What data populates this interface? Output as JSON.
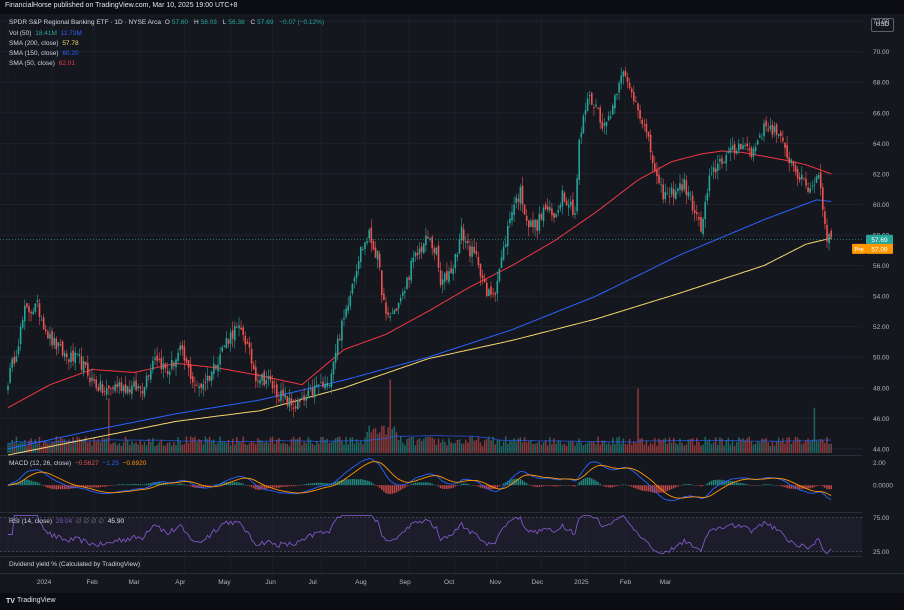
{
  "header": {
    "publisher": "FinancialHorse published on TradingView.com, Mar 10, 2025 19:00 UTC+8",
    "currency": "USD"
  },
  "legend": {
    "title": "SPDR S&P Regional Banking ETF · 1D · NYSE Arca",
    "ohlc": [
      {
        "label": "O",
        "value": "57.60"
      },
      {
        "label": "H",
        "value": "58.03"
      },
      {
        "label": "L",
        "value": "56.38"
      },
      {
        "label": "C",
        "value": "57.69"
      }
    ],
    "change": "−0.07 (−0.12%)",
    "vol": {
      "label": "Vol (50)",
      "v1": "18.41M",
      "v2": "11.73M"
    },
    "sma200": {
      "label": "SMA (200, close)",
      "value": "57.78"
    },
    "sma150": {
      "label": "SMA (150, close)",
      "value": "60.20"
    },
    "sma50": {
      "label": "SMA (50, close)",
      "value": "62.01"
    },
    "macd": {
      "label": "MACD (12, 26, close)",
      "v1": "−0.5627",
      "v2": "−1.25",
      "v3": "−0.6920"
    },
    "rsi": {
      "label": "RSI (14, close)",
      "v1": "29.04",
      "v2": "∅ ∅ ∅ ∅",
      "v3": "45.90"
    },
    "dividend": "Dividend yield % (Calculated by TradingView)"
  },
  "price_tags": {
    "last": "57.69",
    "pre_label": "Pre",
    "pre": "57.09"
  },
  "colors": {
    "up": "#26a69a",
    "down": "#ef5350",
    "sma50": "#f23645",
    "sma150": "#2962ff",
    "sma200": "#f5d76e",
    "macd": "#2962ff",
    "signal": "#ff9800",
    "rsi": "#7e57c2",
    "bg": "#15171f",
    "grid": "#1e222d"
  },
  "footer": {
    "brand_icon": "TV",
    "brand": "TradingView"
  },
  "chart_data": {
    "type": "candlestick",
    "price_axis": {
      "ticks": [
        "44.00",
        "46.00",
        "48.00",
        "50.00",
        "52.00",
        "54.00",
        "56.00",
        "58.00",
        "60.00",
        "62.00",
        "64.00",
        "66.00",
        "68.00",
        "70.00",
        "72.00"
      ],
      "range": [
        43.6,
        72.4
      ]
    },
    "time_axis": {
      "labels": [
        "2024",
        "Feb",
        "Mar",
        "Apr",
        "May",
        "Jun",
        "Jul",
        "Aug",
        "Sep",
        "Oct",
        "Nov",
        "Dec",
        "2025",
        "Feb",
        "Mar"
      ]
    },
    "price_path": [
      [
        0,
        48.5
      ],
      [
        4,
        50.5
      ],
      [
        8,
        53.0
      ],
      [
        14,
        53.3
      ],
      [
        20,
        51.2
      ],
      [
        28,
        50.0
      ],
      [
        34,
        49.8
      ],
      [
        40,
        48.5
      ],
      [
        46,
        47.7
      ],
      [
        52,
        48.2
      ],
      [
        58,
        48.0
      ],
      [
        64,
        48.0
      ],
      [
        70,
        50.2
      ],
      [
        76,
        49.0
      ],
      [
        82,
        50.4
      ],
      [
        90,
        47.9
      ],
      [
        96,
        48.8
      ],
      [
        104,
        51.1
      ],
      [
        108,
        51.8
      ],
      [
        112,
        51.6
      ],
      [
        118,
        48.8
      ],
      [
        124,
        48.5
      ],
      [
        128,
        47.7
      ],
      [
        132,
        47.2
      ],
      [
        136,
        46.8
      ],
      [
        140,
        47.0
      ],
      [
        144,
        47.6
      ],
      [
        148,
        48.2
      ],
      [
        152,
        48.0
      ],
      [
        156,
        50.5
      ],
      [
        160,
        52.5
      ],
      [
        164,
        55.0
      ],
      [
        168,
        57.0
      ],
      [
        172,
        58.0
      ],
      [
        176,
        56.5
      ],
      [
        180,
        52.5
      ],
      [
        184,
        53.0
      ],
      [
        188,
        54.0
      ],
      [
        192,
        56.0
      ],
      [
        196,
        57.0
      ],
      [
        200,
        57.8
      ],
      [
        204,
        56.8
      ],
      [
        206,
        54.7
      ],
      [
        212,
        56.0
      ],
      [
        216,
        58.2
      ],
      [
        220,
        57.0
      ],
      [
        224,
        56.3
      ],
      [
        228,
        54.0
      ],
      [
        232,
        54.5
      ],
      [
        236,
        57.0
      ],
      [
        240,
        59.8
      ],
      [
        244,
        60.8
      ],
      [
        248,
        58.6
      ],
      [
        252,
        58.7
      ],
      [
        256,
        59.8
      ],
      [
        260,
        59.0
      ],
      [
        264,
        60.8
      ],
      [
        268,
        60.0
      ],
      [
        270,
        59.5
      ],
      [
        272,
        64.0
      ],
      [
        276,
        67.0
      ],
      [
        280,
        66.5
      ],
      [
        284,
        65.0
      ],
      [
        288,
        66.5
      ],
      [
        292,
        68.8
      ],
      [
        296,
        67.5
      ],
      [
        300,
        66.5
      ],
      [
        306,
        63.5
      ],
      [
        310,
        61.0
      ],
      [
        314,
        60.5
      ],
      [
        318,
        61.0
      ],
      [
        322,
        61.3
      ],
      [
        326,
        60.0
      ],
      [
        330,
        58.3
      ],
      [
        334,
        61.5
      ],
      [
        338,
        62.7
      ],
      [
        342,
        63.2
      ],
      [
        346,
        63.5
      ],
      [
        350,
        64.2
      ],
      [
        354,
        63.2
      ],
      [
        358,
        64.6
      ],
      [
        362,
        65.2
      ],
      [
        366,
        64.7
      ],
      [
        370,
        63.5
      ],
      [
        374,
        62.6
      ],
      [
        378,
        61.5
      ],
      [
        382,
        61.0
      ],
      [
        386,
        62.1
      ],
      [
        388,
        59.9
      ],
      [
        390,
        58.0
      ],
      [
        392,
        57.7
      ]
    ],
    "sma50": [
      [
        0,
        46.7
      ],
      [
        20,
        48.2
      ],
      [
        40,
        49.2
      ],
      [
        60,
        49.0
      ],
      [
        80,
        49.6
      ],
      [
        100,
        49.3
      ],
      [
        120,
        48.8
      ],
      [
        140,
        48.2
      ],
      [
        160,
        50.5
      ],
      [
        180,
        51.5
      ],
      [
        200,
        53.0
      ],
      [
        220,
        54.6
      ],
      [
        240,
        56.0
      ],
      [
        260,
        57.6
      ],
      [
        280,
        59.5
      ],
      [
        300,
        61.6
      ],
      [
        316,
        62.8
      ],
      [
        330,
        63.3
      ],
      [
        340,
        63.5
      ],
      [
        350,
        63.4
      ],
      [
        370,
        62.9
      ],
      [
        380,
        62.6
      ],
      [
        392,
        62.0
      ]
    ],
    "sma150": [
      [
        0,
        44.0
      ],
      [
        40,
        45.2
      ],
      [
        80,
        46.3
      ],
      [
        120,
        47.2
      ],
      [
        160,
        48.5
      ],
      [
        200,
        50.0
      ],
      [
        240,
        51.8
      ],
      [
        280,
        54.0
      ],
      [
        320,
        56.7
      ],
      [
        360,
        59.0
      ],
      [
        385,
        60.3
      ],
      [
        392,
        60.2
      ]
    ],
    "sma200": [
      [
        0,
        43.6
      ],
      [
        40,
        44.7
      ],
      [
        80,
        45.8
      ],
      [
        120,
        46.5
      ],
      [
        160,
        48.0
      ],
      [
        200,
        49.9
      ],
      [
        240,
        51.1
      ],
      [
        280,
        52.5
      ],
      [
        320,
        54.2
      ],
      [
        360,
        56.0
      ],
      [
        380,
        57.4
      ],
      [
        392,
        57.8
      ]
    ],
    "volume": {
      "axis_max_fraction": 1.0,
      "spike_indices": [
        48,
        182,
        300,
        384
      ],
      "recent_high": "18.41M",
      "avg": "11.73M"
    },
    "macd": {
      "axis_ticks": [
        "2.00",
        "0.0000"
      ],
      "range": [
        -2.2,
        2.5
      ]
    },
    "rsi": {
      "axis_ticks": [
        "75.00",
        "25.00"
      ],
      "range": [
        20,
        80
      ],
      "last": 29.04,
      "avg": 45.9
    }
  }
}
